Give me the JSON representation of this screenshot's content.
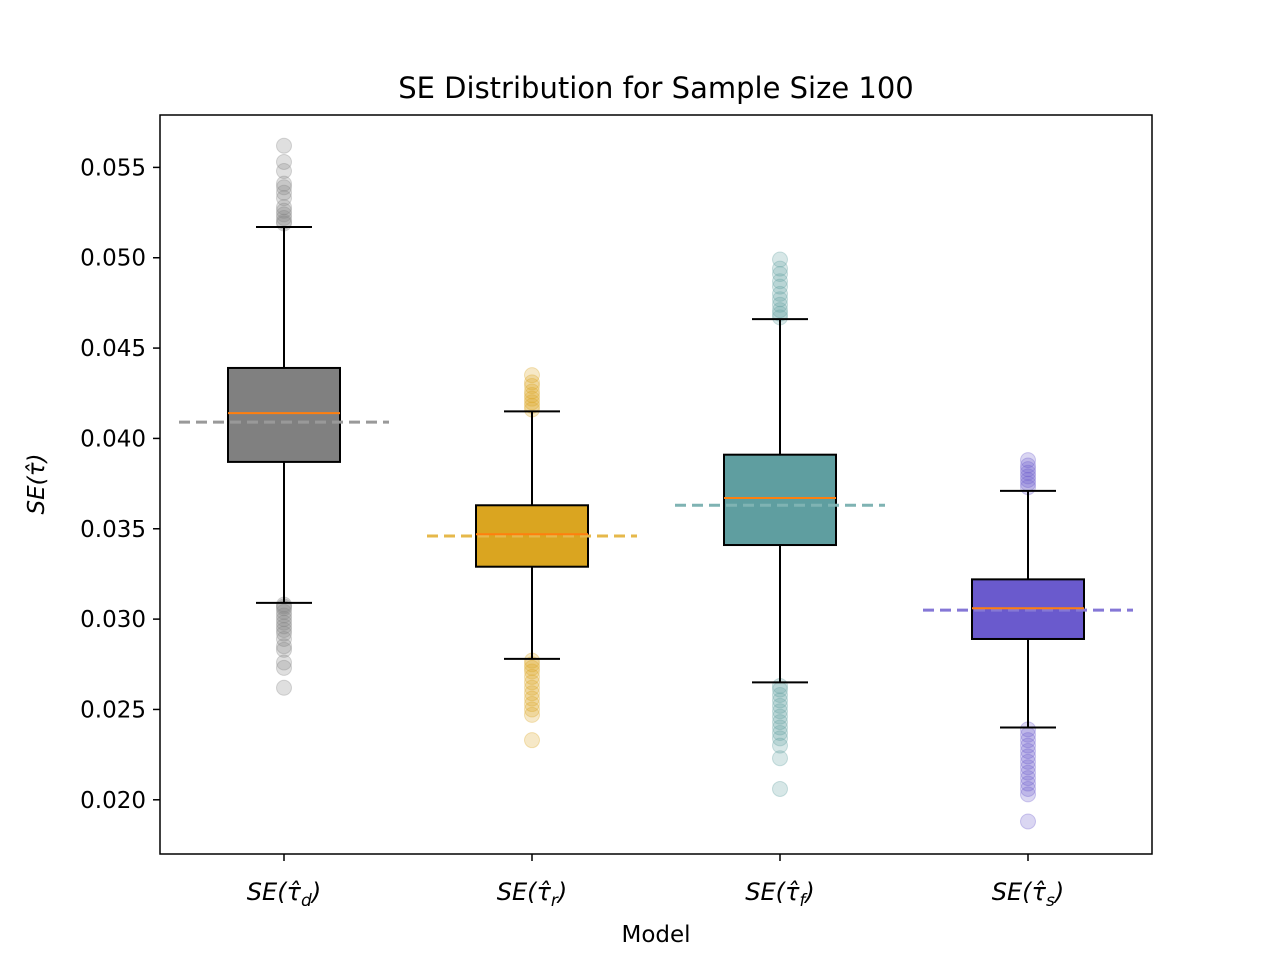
{
  "chart_data": {
    "type": "box",
    "title": "SE Distribution for Sample Size 100",
    "xlabel": "Model",
    "ylabel": "SE(τ̂)",
    "ylim": [
      0.017,
      0.0579
    ],
    "yticks": [
      0.02,
      0.025,
      0.03,
      0.035,
      0.04,
      0.045,
      0.05,
      0.055
    ],
    "ytick_labels": [
      "0.020",
      "0.025",
      "0.030",
      "0.035",
      "0.040",
      "0.045",
      "0.050",
      "0.055"
    ],
    "grid": false,
    "categories": [
      {
        "name": "SE(τ̂_d)",
        "label_main": "SE(τ̂",
        "label_sub": "d",
        "label_end": ")",
        "color": "#808080",
        "ref_color": "#999999",
        "q1": 0.0387,
        "median": 0.0414,
        "q3": 0.0439,
        "whisker_low": 0.0309,
        "whisker_high": 0.0517,
        "reference": 0.0409,
        "outliers": [
          0.0262,
          0.0273,
          0.0276,
          0.0283,
          0.0285,
          0.0289,
          0.0292,
          0.0294,
          0.0296,
          0.0298,
          0.03,
          0.0302,
          0.0304,
          0.0306,
          0.0307,
          0.0308,
          0.0519,
          0.052,
          0.0522,
          0.0524,
          0.0526,
          0.0528,
          0.0533,
          0.0536,
          0.0539,
          0.0541,
          0.0548,
          0.0553,
          0.0562
        ]
      },
      {
        "name": "SE(τ̂_r)",
        "label_main": "SE(τ̂",
        "label_sub": "r",
        "label_end": ")",
        "color": "#DAA520",
        "ref_color": "#E6B84A",
        "q1": 0.0329,
        "median": 0.0347,
        "q3": 0.0363,
        "whisker_low": 0.0278,
        "whisker_high": 0.0415,
        "reference": 0.0346,
        "outliers": [
          0.0233,
          0.0247,
          0.025,
          0.0253,
          0.0256,
          0.0259,
          0.0262,
          0.0265,
          0.0268,
          0.0271,
          0.0273,
          0.0275,
          0.0277,
          0.0416,
          0.0418,
          0.042,
          0.0422,
          0.0424,
          0.0426,
          0.0429,
          0.0431,
          0.0435
        ]
      },
      {
        "name": "SE(τ̂_f)",
        "label_main": "SE(τ̂",
        "label_sub": "f",
        "label_end": ")",
        "color": "#5F9EA0",
        "ref_color": "#7FB3B3",
        "q1": 0.0341,
        "median": 0.0367,
        "q3": 0.0391,
        "whisker_low": 0.0265,
        "whisker_high": 0.0466,
        "reference": 0.0363,
        "outliers": [
          0.0206,
          0.0223,
          0.023,
          0.0234,
          0.0237,
          0.024,
          0.0243,
          0.0246,
          0.0249,
          0.0252,
          0.0255,
          0.0258,
          0.0261,
          0.0263,
          0.0467,
          0.0469,
          0.0471,
          0.0474,
          0.0477,
          0.048,
          0.0484,
          0.0487,
          0.0491,
          0.0494,
          0.0499
        ]
      },
      {
        "name": "SE(τ̂_s)",
        "label_main": "SE(τ̂",
        "label_sub": "s",
        "label_end": ")",
        "color": "#6A5ACD",
        "ref_color": "#8577D6",
        "q1": 0.0289,
        "median": 0.0306,
        "q3": 0.0322,
        "whisker_low": 0.024,
        "whisker_high": 0.0371,
        "reference": 0.0305,
        "outliers": [
          0.0188,
          0.0203,
          0.0206,
          0.0209,
          0.0212,
          0.0215,
          0.0218,
          0.0221,
          0.0224,
          0.0227,
          0.023,
          0.0233,
          0.0236,
          0.0239,
          0.0373,
          0.0375,
          0.0377,
          0.0379,
          0.0381,
          0.0383,
          0.0385,
          0.0388
        ]
      }
    ],
    "median_color": "#FF7F0E"
  }
}
